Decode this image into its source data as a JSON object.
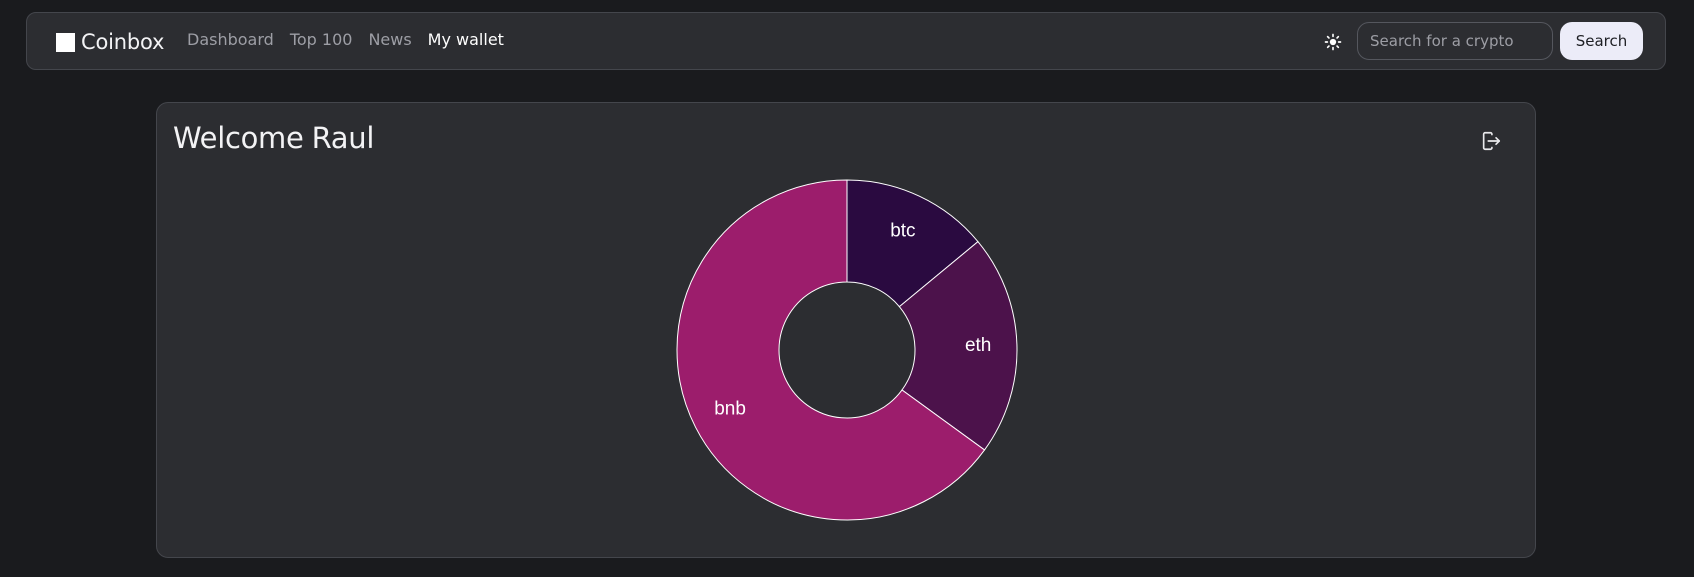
{
  "header": {
    "brand": "Coinbox",
    "nav": [
      {
        "label": "Dashboard",
        "active": false
      },
      {
        "label": "Top 100",
        "active": false
      },
      {
        "label": "News",
        "active": false
      },
      {
        "label": "My wallet",
        "active": true
      }
    ],
    "theme_icon": "sun-icon",
    "search": {
      "placeholder": "Search for a crypto",
      "value": "",
      "button_label": "Search"
    }
  },
  "wallet": {
    "greeting": "Welcome",
    "user_name": "Raul",
    "logout_icon": "logout-icon"
  },
  "colors": {
    "background": "#1a1b1e",
    "panel": "#2c2d31",
    "slice_btc": "#2a0a40",
    "slice_eth": "#4c124b",
    "slice_bnb": "#9c1d6c"
  },
  "chart_data": {
    "type": "pie",
    "donut": true,
    "categories": [
      "btc",
      "eth",
      "bnb"
    ],
    "values": [
      14,
      21,
      65
    ],
    "colors": [
      "#2a0a40",
      "#4c124b",
      "#9c1d6c"
    ]
  }
}
